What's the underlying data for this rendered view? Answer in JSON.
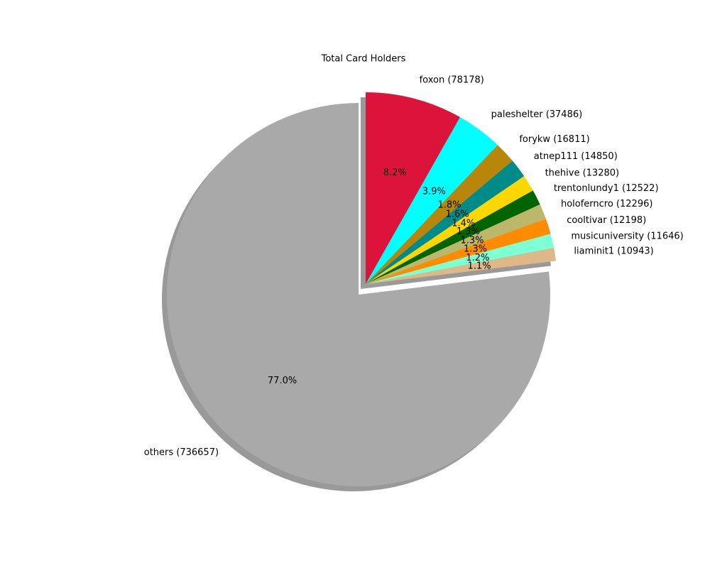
{
  "chart_data": {
    "type": "pie",
    "title": "Total Card Holders",
    "categories": [
      "others (736657)",
      "liaminit1 (10943)",
      "musicuniversity (11646)",
      "cooltivar (12198)",
      "holoferncro (12296)",
      "trentonlundy1 (12522)",
      "thehive (13280)",
      "atnep111 (14850)",
      "forykw (16811)",
      "paleshelter (37486)",
      "foxon (78178)"
    ],
    "values": [
      77.0,
      1.1,
      1.2,
      1.3,
      1.3,
      1.3,
      1.4,
      1.6,
      1.8,
      3.9,
      8.2
    ],
    "value_labels": [
      "77.0%",
      "1.1%",
      "1.2%",
      "1.3%",
      "1.3%",
      "1.3%",
      "1.4%",
      "1.6%",
      "1.8%",
      "3.9%",
      "8.2%"
    ],
    "colors": [
      "#a9a9a9",
      "#deb887",
      "#7fffd4",
      "#ff8c00",
      "#bdb76b",
      "#006400",
      "#ffd700",
      "#008b8b",
      "#b8860b",
      "#00ffff",
      "#dc143c"
    ],
    "shadow": true
  }
}
